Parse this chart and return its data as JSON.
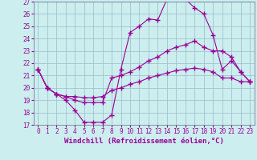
{
  "xlabel": "Windchill (Refroidissement éolien,°C)",
  "bg_color": "#cceeee",
  "line_color": "#990099",
  "grid_color": "#99bbcc",
  "xlim": [
    -0.5,
    23.5
  ],
  "ylim": [
    17,
    27
  ],
  "yticks": [
    17,
    18,
    19,
    20,
    21,
    22,
    23,
    24,
    25,
    26,
    27
  ],
  "xticks": [
    0,
    1,
    2,
    3,
    4,
    5,
    6,
    7,
    8,
    9,
    10,
    11,
    12,
    13,
    14,
    15,
    16,
    17,
    18,
    19,
    20,
    21,
    22,
    23
  ],
  "series": [
    {
      "x": [
        0,
        1,
        2,
        3,
        4,
        5,
        6,
        7,
        8,
        9,
        10,
        11,
        12,
        13,
        14,
        15,
        16,
        17,
        18,
        19,
        20,
        21,
        22,
        23
      ],
      "y": [
        21.5,
        20.0,
        19.5,
        19.0,
        18.2,
        17.2,
        17.2,
        17.2,
        17.8,
        21.5,
        24.5,
        25.0,
        25.6,
        25.5,
        27.2,
        27.3,
        27.2,
        26.5,
        26.0,
        24.3,
        21.5,
        22.2,
        21.3,
        20.5
      ]
    },
    {
      "x": [
        0,
        1,
        2,
        3,
        4,
        5,
        6,
        7,
        8,
        9,
        10,
        11,
        12,
        13,
        14,
        15,
        16,
        17,
        18,
        19,
        20,
        21,
        22,
        23
      ],
      "y": [
        21.5,
        20.0,
        19.5,
        19.3,
        19.0,
        18.8,
        18.8,
        18.8,
        20.8,
        21.0,
        21.3,
        21.7,
        22.2,
        22.5,
        23.0,
        23.3,
        23.5,
        23.8,
        23.3,
        23.0,
        23.0,
        22.5,
        21.3,
        20.5
      ]
    },
    {
      "x": [
        0,
        1,
        2,
        3,
        4,
        5,
        6,
        7,
        8,
        9,
        10,
        11,
        12,
        13,
        14,
        15,
        16,
        17,
        18,
        19,
        20,
        21,
        22,
        23
      ],
      "y": [
        21.5,
        20.0,
        19.5,
        19.3,
        19.3,
        19.2,
        19.2,
        19.3,
        19.8,
        20.0,
        20.3,
        20.5,
        20.8,
        21.0,
        21.2,
        21.4,
        21.5,
        21.6,
        21.5,
        21.3,
        20.8,
        20.8,
        20.5,
        20.5
      ]
    }
  ],
  "marker": "+",
  "markersize": 4.0,
  "markeredgewidth": 1.0,
  "linewidth": 0.8,
  "xlabel_fontsize": 6.5,
  "tick_fontsize": 5.5
}
